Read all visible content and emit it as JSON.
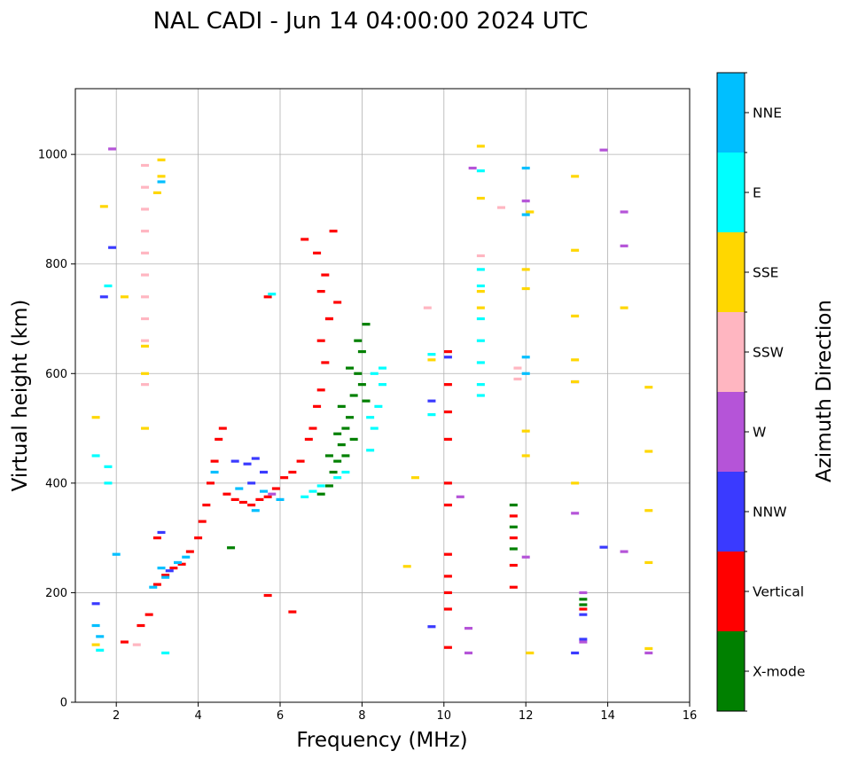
{
  "chart_data": {
    "type": "scatter",
    "title": "NAL CADI - Jun 14 04:00:00 2024 UTC",
    "xlabel": "Frequency (MHz)",
    "ylabel": "Virtual height (km)",
    "xlim": [
      1,
      16
    ],
    "ylim": [
      0,
      1120
    ],
    "xticks": [
      2,
      4,
      6,
      8,
      10,
      12,
      14,
      16
    ],
    "yticks": [
      0,
      200,
      400,
      600,
      800,
      1000
    ],
    "grid": true,
    "colorbar": {
      "label": "Azimuth Direction",
      "categories": [
        {
          "name": "X-mode",
          "color": "#008000"
        },
        {
          "name": "Vertical",
          "color": "#ff0000"
        },
        {
          "name": "NNW",
          "color": "#3a3aff"
        },
        {
          "name": "W",
          "color": "#b554d8"
        },
        {
          "name": "SSW",
          "color": "#ffb6c1"
        },
        {
          "name": "SSE",
          "color": "#ffd700"
        },
        {
          "name": "E",
          "color": "#00ffff"
        },
        {
          "name": "NNE",
          "color": "#00bfff"
        }
      ]
    },
    "series": [
      {
        "name": "X-mode",
        "points": [
          [
            7.2,
            395
          ],
          [
            7.3,
            420
          ],
          [
            7.4,
            440
          ],
          [
            7.5,
            470
          ],
          [
            7.6,
            500
          ],
          [
            7.7,
            520
          ],
          [
            7.8,
            560
          ],
          [
            7.9,
            600
          ],
          [
            8.0,
            640
          ],
          [
            8.1,
            690
          ],
          [
            7.5,
            540
          ],
          [
            7.7,
            610
          ],
          [
            7.9,
            660
          ],
          [
            8.0,
            580
          ],
          [
            7.6,
            450
          ],
          [
            7.8,
            480
          ],
          [
            8.1,
            550
          ],
          [
            7.4,
            490
          ],
          [
            7.0,
            380
          ],
          [
            7.2,
            450
          ],
          [
            4.8,
            282
          ],
          [
            11.7,
            360
          ],
          [
            11.7,
            320
          ],
          [
            11.7,
            280
          ],
          [
            13.4,
            188
          ],
          [
            13.4,
            178
          ]
        ]
      },
      {
        "name": "Vertical",
        "points": [
          [
            3.0,
            215
          ],
          [
            3.2,
            232
          ],
          [
            3.4,
            245
          ],
          [
            3.6,
            252
          ],
          [
            3.8,
            275
          ],
          [
            4.0,
            300
          ],
          [
            4.1,
            330
          ],
          [
            4.2,
            360
          ],
          [
            4.3,
            400
          ],
          [
            4.4,
            440
          ],
          [
            4.5,
            480
          ],
          [
            4.6,
            500
          ],
          [
            4.7,
            380
          ],
          [
            4.9,
            370
          ],
          [
            5.1,
            365
          ],
          [
            5.3,
            360
          ],
          [
            5.5,
            370
          ],
          [
            5.7,
            375
          ],
          [
            5.9,
            390
          ],
          [
            6.1,
            410
          ],
          [
            6.3,
            420
          ],
          [
            6.5,
            440
          ],
          [
            6.7,
            480
          ],
          [
            6.8,
            500
          ],
          [
            6.9,
            540
          ],
          [
            7.0,
            570
          ],
          [
            7.1,
            620
          ],
          [
            7.0,
            660
          ],
          [
            7.2,
            700
          ],
          [
            7.0,
            750
          ],
          [
            7.1,
            780
          ],
          [
            6.9,
            820
          ],
          [
            7.3,
            860
          ],
          [
            7.2,
            700
          ],
          [
            7.4,
            730
          ],
          [
            6.6,
            845
          ],
          [
            5.7,
            740
          ],
          [
            5.7,
            195
          ],
          [
            6.3,
            165
          ],
          [
            10.1,
            640
          ],
          [
            10.1,
            580
          ],
          [
            10.1,
            530
          ],
          [
            10.1,
            480
          ],
          [
            10.1,
            400
          ],
          [
            10.1,
            360
          ],
          [
            10.1,
            270
          ],
          [
            10.1,
            230
          ],
          [
            10.1,
            200
          ],
          [
            10.1,
            170
          ],
          [
            10.1,
            100
          ],
          [
            11.7,
            340
          ],
          [
            11.7,
            300
          ],
          [
            11.7,
            250
          ],
          [
            11.7,
            210
          ],
          [
            3.0,
            300
          ],
          [
            2.8,
            160
          ],
          [
            2.6,
            140
          ],
          [
            2.2,
            110
          ],
          [
            13.4,
            170
          ]
        ]
      },
      {
        "name": "NNW",
        "points": [
          [
            3.1,
            310
          ],
          [
            3.3,
            240
          ],
          [
            4.9,
            440
          ],
          [
            5.2,
            435
          ],
          [
            5.4,
            445
          ],
          [
            5.6,
            420
          ],
          [
            5.3,
            400
          ],
          [
            1.5,
            180
          ],
          [
            1.7,
            740
          ],
          [
            1.9,
            830
          ],
          [
            9.7,
            138
          ],
          [
            9.7,
            550
          ],
          [
            10.1,
            630
          ],
          [
            13.2,
            90
          ],
          [
            13.9,
            283
          ],
          [
            13.4,
            160
          ],
          [
            13.4,
            115
          ]
        ]
      },
      {
        "name": "W",
        "points": [
          [
            1.9,
            1010
          ],
          [
            10.4,
            375
          ],
          [
            10.7,
            975
          ],
          [
            10.6,
            135
          ],
          [
            10.6,
            90
          ],
          [
            12.0,
            265
          ],
          [
            12.0,
            915
          ],
          [
            13.2,
            345
          ],
          [
            13.2,
            585
          ],
          [
            13.9,
            1008
          ],
          [
            14.4,
            895
          ],
          [
            14.4,
            833
          ],
          [
            14.4,
            275
          ],
          [
            15.0,
            90
          ],
          [
            13.4,
            200
          ],
          [
            13.4,
            110
          ],
          [
            5.8,
            380
          ]
        ]
      },
      {
        "name": "SSW",
        "points": [
          [
            2.7,
            980
          ],
          [
            2.7,
            940
          ],
          [
            2.7,
            900
          ],
          [
            2.7,
            860
          ],
          [
            2.7,
            820
          ],
          [
            2.7,
            780
          ],
          [
            2.7,
            740
          ],
          [
            2.7,
            700
          ],
          [
            2.7,
            660
          ],
          [
            2.7,
            580
          ],
          [
            10.9,
            815
          ],
          [
            11.8,
            610
          ],
          [
            11.8,
            590
          ],
          [
            11.4,
            903
          ],
          [
            9.6,
            720
          ],
          [
            2.5,
            105
          ]
        ]
      },
      {
        "name": "SSE",
        "points": [
          [
            3.1,
            990
          ],
          [
            3.1,
            960
          ],
          [
            3.0,
            930
          ],
          [
            2.7,
            650
          ],
          [
            2.7,
            600
          ],
          [
            2.7,
            500
          ],
          [
            1.5,
            520
          ],
          [
            1.7,
            905
          ],
          [
            2.2,
            740
          ],
          [
            9.1,
            248
          ],
          [
            9.3,
            410
          ],
          [
            9.7,
            625
          ],
          [
            10.9,
            1015
          ],
          [
            10.9,
            920
          ],
          [
            10.9,
            750
          ],
          [
            10.9,
            720
          ],
          [
            12.0,
            790
          ],
          [
            12.0,
            755
          ],
          [
            12.0,
            495
          ],
          [
            12.0,
            450
          ],
          [
            12.1,
            895
          ],
          [
            12.1,
            90
          ],
          [
            13.2,
            960
          ],
          [
            13.2,
            825
          ],
          [
            13.2,
            705
          ],
          [
            13.2,
            625
          ],
          [
            13.2,
            585
          ],
          [
            13.2,
            400
          ],
          [
            14.4,
            720
          ],
          [
            15.0,
            575
          ],
          [
            15.0,
            458
          ],
          [
            15.0,
            350
          ],
          [
            15.0,
            255
          ],
          [
            15.0,
            98
          ],
          [
            1.5,
            105
          ]
        ]
      },
      {
        "name": "E",
        "points": [
          [
            6.6,
            375
          ],
          [
            6.8,
            385
          ],
          [
            7.0,
            395
          ],
          [
            7.4,
            410
          ],
          [
            7.6,
            420
          ],
          [
            8.2,
            460
          ],
          [
            8.3,
            500
          ],
          [
            8.4,
            540
          ],
          [
            8.5,
            580
          ],
          [
            8.5,
            610
          ],
          [
            8.3,
            600
          ],
          [
            8.2,
            520
          ],
          [
            10.9,
            790
          ],
          [
            10.9,
            760
          ],
          [
            10.9,
            700
          ],
          [
            10.9,
            660
          ],
          [
            10.9,
            620
          ],
          [
            10.9,
            580
          ],
          [
            10.9,
            560
          ],
          [
            10.9,
            970
          ],
          [
            9.7,
            635
          ],
          [
            9.7,
            525
          ],
          [
            3.2,
            90
          ],
          [
            1.8,
            430
          ],
          [
            1.8,
            400
          ],
          [
            1.8,
            760
          ],
          [
            1.5,
            450
          ],
          [
            5.8,
            745
          ],
          [
            1.6,
            95
          ]
        ]
      },
      {
        "name": "NNE",
        "points": [
          [
            3.1,
            245
          ],
          [
            3.2,
            228
          ],
          [
            2.9,
            210
          ],
          [
            3.5,
            255
          ],
          [
            3.7,
            265
          ],
          [
            4.4,
            420
          ],
          [
            5.0,
            390
          ],
          [
            5.6,
            385
          ],
          [
            6.0,
            370
          ],
          [
            5.4,
            350
          ],
          [
            3.1,
            950
          ],
          [
            12.0,
            975
          ],
          [
            12.0,
            890
          ],
          [
            12.0,
            630
          ],
          [
            12.0,
            600
          ],
          [
            1.5,
            140
          ],
          [
            1.6,
            120
          ],
          [
            2.0,
            270
          ]
        ]
      }
    ]
  }
}
